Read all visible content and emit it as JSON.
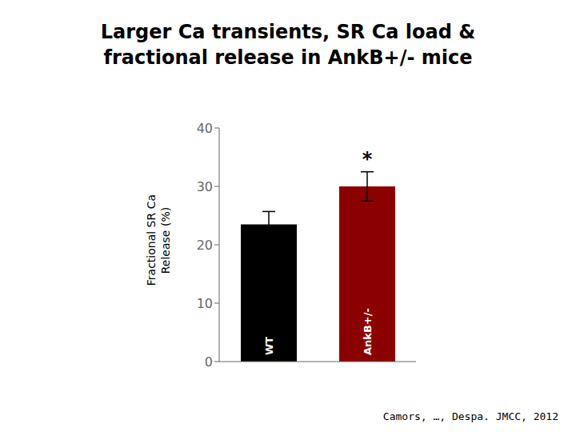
{
  "chart_data": {
    "type": "bar",
    "title": "Larger Ca transients, SR Ca load &\nfractional release in AnkB+/- mice",
    "categories": [
      "WT",
      "AnkB+/-"
    ],
    "values": [
      23.5,
      30.0
    ],
    "errors": [
      2.2,
      2.5
    ],
    "colors": [
      "#000000",
      "#8B0000"
    ],
    "ylabel": "Fractional SR Ca\nRelease (%)",
    "ylim": [
      0,
      40
    ],
    "yticks": [
      0,
      10,
      20,
      30,
      40
    ],
    "grid": false,
    "tick_labels": "y",
    "annotations": [
      {
        "text": "*",
        "category": "AnkB+/-"
      },
      {
        "text": "Camors, …, Despa. JMCC, 2012"
      }
    ]
  }
}
